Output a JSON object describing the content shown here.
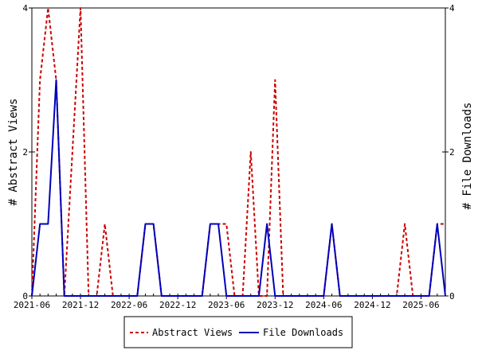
{
  "chart_data": {
    "type": "line",
    "title": "",
    "xlabel": "",
    "ylabel_left": "# Abstract Views",
    "ylabel_right": "# File Downloads",
    "ylim": [
      0,
      4
    ],
    "yticks": [
      0,
      2,
      4
    ],
    "yticks_right": [
      0,
      2,
      4
    ],
    "x_tick_labels": [
      "2021-06",
      "2021-12",
      "2022-06",
      "2022-12",
      "2023-06",
      "2023-12",
      "2024-06",
      "2024-12",
      "2025-06"
    ],
    "months": [
      "2021-06",
      "2021-07",
      "2021-08",
      "2021-09",
      "2021-10",
      "2021-11",
      "2021-12",
      "2022-01",
      "2022-02",
      "2022-03",
      "2022-04",
      "2022-05",
      "2022-06",
      "2022-07",
      "2022-08",
      "2022-09",
      "2022-10",
      "2022-11",
      "2022-12",
      "2023-01",
      "2023-02",
      "2023-03",
      "2023-04",
      "2023-05",
      "2023-06",
      "2023-07",
      "2023-08",
      "2023-09",
      "2023-10",
      "2023-11",
      "2023-12",
      "2024-01",
      "2024-02",
      "2024-03",
      "2024-04",
      "2024-05",
      "2024-06",
      "2024-07",
      "2024-08",
      "2024-09",
      "2024-10",
      "2024-11",
      "2024-12",
      "2025-01",
      "2025-02",
      "2025-03",
      "2025-04",
      "2025-05",
      "2025-06",
      "2025-07",
      "2025-08",
      "2025-09"
    ],
    "series": [
      {
        "name": "Abstract Views",
        "color": "#cc0000",
        "dashed": true,
        "values": [
          0,
          3,
          4,
          3,
          0,
          2,
          4,
          0,
          0,
          1,
          0,
          0,
          0,
          0,
          1,
          1,
          0,
          0,
          0,
          0,
          0,
          0,
          1,
          1,
          1,
          0,
          0,
          2,
          0,
          0,
          3,
          0,
          0,
          0,
          0,
          0,
          0,
          1,
          0,
          0,
          0,
          0,
          0,
          0,
          0,
          0,
          1,
          0,
          0,
          0,
          1,
          1
        ]
      },
      {
        "name": "File Downloads",
        "color": "#0000bb",
        "dashed": false,
        "values": [
          0,
          1,
          1,
          3,
          0,
          0,
          0,
          0,
          0,
          0,
          0,
          0,
          0,
          0,
          1,
          1,
          0,
          0,
          0,
          0,
          0,
          0,
          1,
          1,
          0,
          0,
          0,
          0,
          0,
          1,
          0,
          0,
          0,
          0,
          0,
          0,
          0,
          1,
          0,
          0,
          0,
          0,
          0,
          0,
          0,
          0,
          0,
          0,
          0,
          0,
          1,
          0
        ]
      }
    ],
    "legend_position": "bottom-center"
  }
}
